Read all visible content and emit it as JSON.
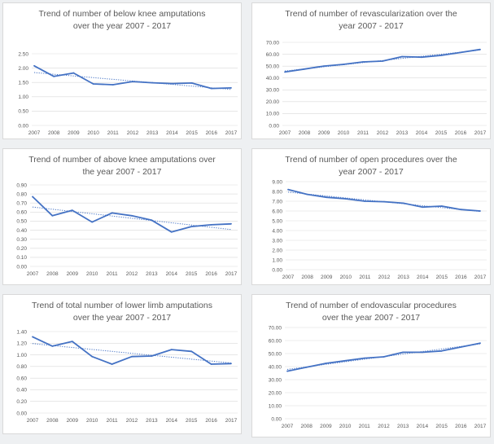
{
  "colors": {
    "line": "#4472c4",
    "trend": "#4472c4",
    "grid": "#d9d9d9",
    "text": "#595959"
  },
  "chart_data": [
    {
      "type": "line",
      "title": "Trend of number of below knee amputations\nover the year 2007 - 2017",
      "categories": [
        "2007",
        "2008",
        "2009",
        "2010",
        "2011",
        "2012",
        "2013",
        "2014",
        "2015",
        "2016",
        "2017"
      ],
      "series": [
        {
          "values": [
            2.08,
            1.71,
            1.83,
            1.45,
            1.42,
            1.53,
            1.49,
            1.46,
            1.48,
            1.29,
            1.31
          ]
        }
      ],
      "trendline": "linear",
      "ylim": [
        0,
        2.5
      ],
      "ystep": 0.5,
      "ydecimals": 2,
      "grid": true
    },
    {
      "type": "line",
      "title": "Trend of number of revascularization over the\nyear 2007 - 2017",
      "categories": [
        "2007",
        "2008",
        "2009",
        "2010",
        "2011",
        "2012",
        "2013",
        "2014",
        "2015",
        "2016",
        "2017"
      ],
      "series": [
        {
          "values": [
            45.0,
            47.5,
            50.0,
            51.5,
            53.5,
            54.2,
            58.0,
            57.5,
            59.0,
            61.5,
            64.0
          ]
        }
      ],
      "trendline": "linear",
      "ylim": [
        0,
        70
      ],
      "ystep": 10,
      "ydecimals": 2,
      "grid": true
    },
    {
      "type": "line",
      "title": "Trend of number of above knee amputations over\nthe year 2007 - 2017",
      "categories": [
        "2007",
        "2008",
        "2009",
        "2010",
        "2011",
        "2012",
        "2013",
        "2014",
        "2015",
        "2016",
        "2017"
      ],
      "series": [
        {
          "values": [
            0.77,
            0.56,
            0.62,
            0.49,
            0.59,
            0.56,
            0.51,
            0.38,
            0.44,
            0.46,
            0.47
          ]
        }
      ],
      "trendline": "linear",
      "ylim": [
        0,
        0.9
      ],
      "ystep": 0.1,
      "ydecimals": 2,
      "grid": true
    },
    {
      "type": "line",
      "title": "Trend of number of open procedures over the\nyear 2007 - 2017",
      "categories": [
        "2007",
        "2008",
        "2009",
        "2010",
        "2011",
        "2012",
        "2013",
        "2014",
        "2015",
        "2016",
        "2017"
      ],
      "series": [
        {
          "values": [
            8.2,
            7.7,
            7.4,
            7.25,
            7.0,
            6.95,
            6.8,
            6.4,
            6.5,
            6.15,
            6.0
          ]
        }
      ],
      "trendline": "linear",
      "ylim": [
        0,
        9
      ],
      "ystep": 1,
      "ydecimals": 2,
      "grid": true
    },
    {
      "type": "line",
      "title": "Trend of total number of lower limb amputations\nover the year 2007 - 2017",
      "categories": [
        "2007",
        "2008",
        "2009",
        "2010",
        "2011",
        "2012",
        "2013",
        "2014",
        "2015",
        "2016",
        "2017"
      ],
      "series": [
        {
          "values": [
            1.31,
            1.15,
            1.23,
            0.97,
            0.84,
            0.97,
            0.98,
            1.09,
            1.06,
            0.84,
            0.85
          ]
        }
      ],
      "trendline": "linear",
      "ylim": [
        0,
        1.4
      ],
      "ystep": 0.2,
      "ydecimals": 2,
      "grid": true
    },
    {
      "type": "line",
      "title": "Trend of number of endovascular procedures\nover the year 2007 - 2017",
      "categories": [
        "2007",
        "2008",
        "2009",
        "2010",
        "2011",
        "2012",
        "2013",
        "2014",
        "2015",
        "2016",
        "2017"
      ],
      "series": [
        {
          "values": [
            36.5,
            39.5,
            42.5,
            44.5,
            46.5,
            47.5,
            51.0,
            51.0,
            52.0,
            55.0,
            58.0
          ]
        }
      ],
      "trendline": "linear",
      "ylim": [
        0,
        70
      ],
      "ystep": 10,
      "ydecimals": 2,
      "grid": true
    }
  ]
}
